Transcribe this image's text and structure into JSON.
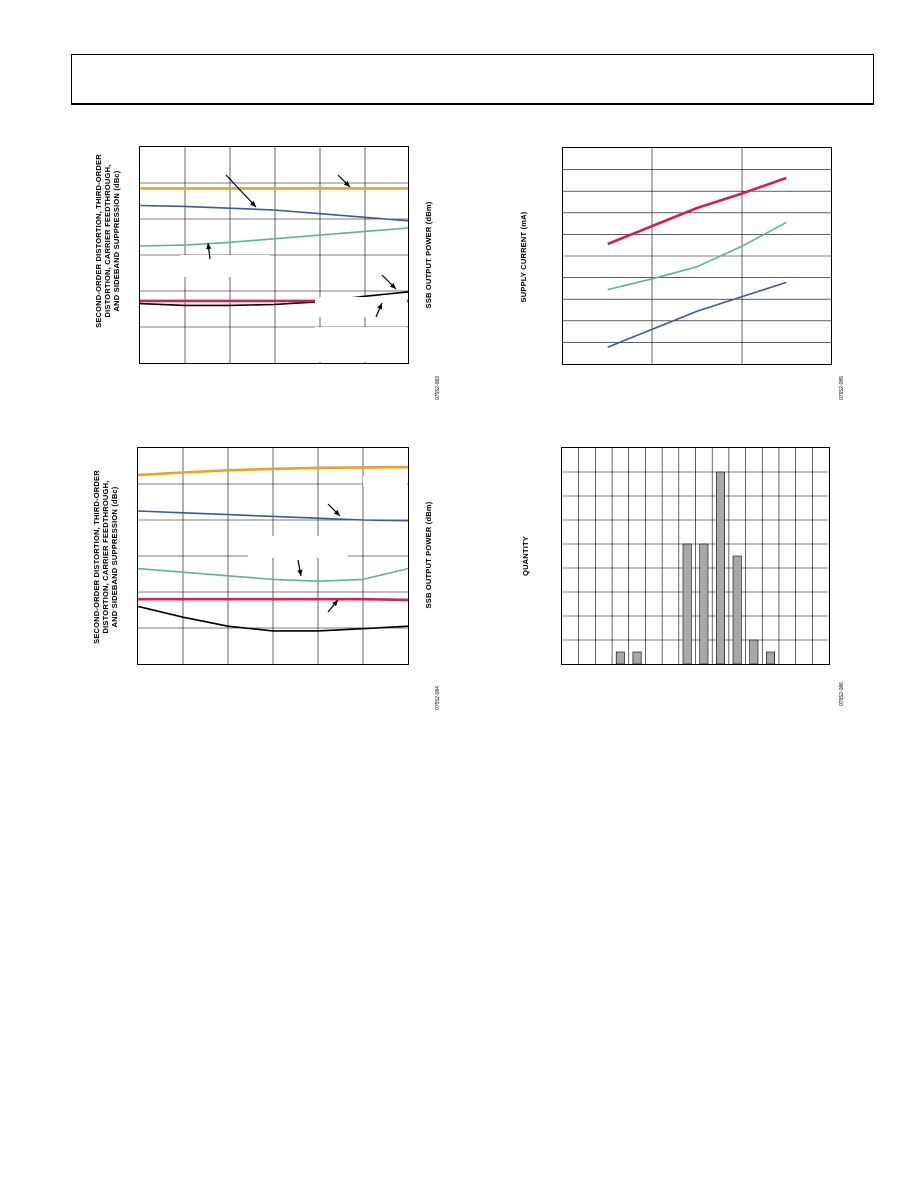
{
  "charts": [
    {
      "id": "chart1",
      "ylabel_left": "SECOND-ORDER DISTORTION, THIRD-ORDER\nDISTORTION, CARRIER FEEDTHROUGH,\nAND SIDEBAND SUPPRESSION (dBc)",
      "ylabel_right": "SSB OUTPUT POWER (dBm)",
      "figure_code": "07552-083"
    },
    {
      "id": "chart2",
      "ylabel_left": "SUPPLY CURRENT (mA)",
      "figure_code": "07552-085"
    },
    {
      "id": "chart3",
      "ylabel_left": "SECOND-ORDER DISTORTION, THIRD-ORDER\nDISTORTION, CARRIER FEEDTHROUGH,\nAND SIDEBAND SUPPRESSION (dBc)",
      "ylabel_right": "SSB OUTPUT POWER (dBm)",
      "figure_code": "07552-084"
    },
    {
      "id": "chart4",
      "ylabel_left": "QUANTITY",
      "figure_code": "07552-086"
    }
  ],
  "colors": {
    "orange": "#f0a020",
    "blue": "#3a5a9a",
    "green": "#5fb48a",
    "red": "#d42050",
    "black": "#000000",
    "bar": "#a8a8a8"
  },
  "chart_data": [
    {
      "type": "line",
      "xlim": [
        0,
        6
      ],
      "ylim": [
        0,
        12
      ],
      "series": [
        {
          "color": "orange",
          "x": [
            0,
            1,
            2,
            3,
            4,
            5,
            6
          ],
          "y": [
            9.7,
            9.7,
            9.7,
            9.7,
            9.7,
            9.7,
            9.7
          ]
        },
        {
          "color": "blue",
          "x": [
            0,
            1,
            2,
            3,
            4,
            5,
            6
          ],
          "y": [
            8.75,
            8.7,
            8.6,
            8.5,
            8.3,
            8.1,
            7.9
          ]
        },
        {
          "color": "green",
          "x": [
            0,
            1,
            2,
            3,
            4,
            5,
            6
          ],
          "y": [
            6.5,
            6.55,
            6.7,
            6.9,
            7.1,
            7.3,
            7.5
          ]
        },
        {
          "color": "black",
          "x": [
            0,
            1,
            2,
            3,
            4,
            5,
            6
          ],
          "y": [
            3.3,
            3.2,
            3.2,
            3.25,
            3.4,
            3.7,
            3.95
          ]
        },
        {
          "color": "red",
          "x": [
            0,
            1,
            2,
            3,
            4,
            5,
            6
          ],
          "y": [
            3.45,
            3.45,
            3.45,
            3.45,
            3.45,
            3.45,
            3.45
          ]
        }
      ]
    },
    {
      "type": "line",
      "xlim": [
        0,
        3
      ],
      "ylim": [
        0,
        9
      ],
      "series": [
        {
          "color": "red",
          "x": [
            0.5,
            1.0,
            1.5,
            2.0,
            2.5
          ],
          "y": [
            5.0,
            5.75,
            6.5,
            7.1,
            7.75
          ]
        },
        {
          "color": "green",
          "x": [
            0.5,
            1.0,
            1.5,
            2.0,
            2.5
          ],
          "y": [
            3.1,
            3.55,
            4.05,
            4.9,
            5.9
          ]
        },
        {
          "color": "blue",
          "x": [
            0.5,
            1.0,
            1.5,
            2.0,
            2.5
          ],
          "y": [
            0.7,
            1.45,
            2.2,
            2.8,
            3.4
          ]
        }
      ]
    },
    {
      "type": "line",
      "xlim": [
        0,
        6
      ],
      "ylim": [
        0,
        6
      ],
      "series": [
        {
          "color": "orange",
          "x": [
            0,
            1,
            2,
            3,
            4,
            5,
            6
          ],
          "y": [
            5.25,
            5.32,
            5.38,
            5.42,
            5.45,
            5.46,
            5.47
          ]
        },
        {
          "color": "blue",
          "x": [
            0,
            1,
            2,
            3,
            4,
            5,
            6
          ],
          "y": [
            4.25,
            4.2,
            4.15,
            4.1,
            4.05,
            4.0,
            3.98
          ]
        },
        {
          "color": "green",
          "x": [
            0,
            1,
            2,
            3,
            4,
            5,
            6
          ],
          "y": [
            2.65,
            2.55,
            2.45,
            2.35,
            2.3,
            2.35,
            2.65
          ]
        },
        {
          "color": "red",
          "x": [
            0,
            1,
            2,
            3,
            4,
            5,
            6
          ],
          "y": [
            1.8,
            1.8,
            1.8,
            1.8,
            1.8,
            1.8,
            1.78
          ]
        },
        {
          "color": "black",
          "x": [
            0,
            1,
            2,
            3,
            4,
            5,
            6
          ],
          "y": [
            1.6,
            1.3,
            1.05,
            0.92,
            0.92,
            0.98,
            1.05
          ]
        }
      ]
    },
    {
      "type": "bar",
      "xlim": [
        0,
        16
      ],
      "ylim": [
        0,
        9
      ],
      "bars": [
        {
          "x": 3.5,
          "value": 0.5
        },
        {
          "x": 4.5,
          "value": 0.5
        },
        {
          "x": 7.5,
          "value": 5
        },
        {
          "x": 8.5,
          "value": 5
        },
        {
          "x": 9.5,
          "value": 8
        },
        {
          "x": 10.5,
          "value": 4.5
        },
        {
          "x": 11.5,
          "value": 1
        },
        {
          "x": 12.5,
          "value": 0.5
        }
      ]
    }
  ]
}
